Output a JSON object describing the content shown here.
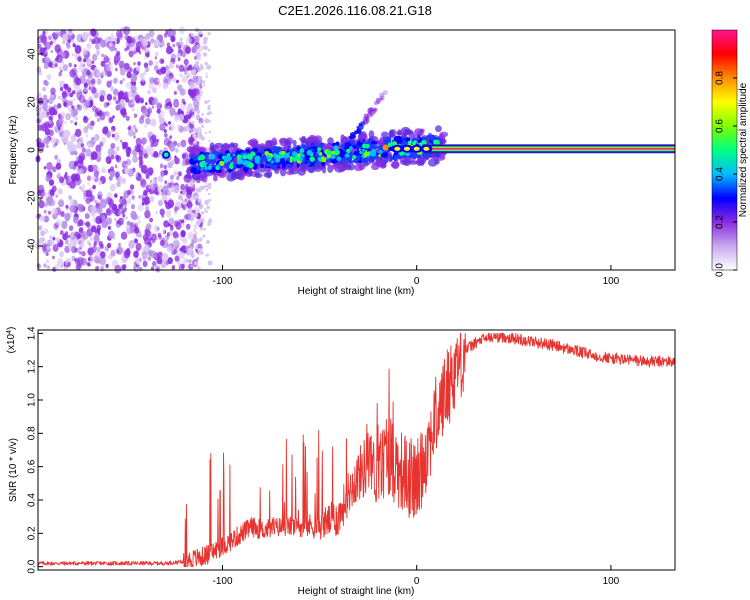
{
  "title": "C2E1.2026.116.08.21.G18",
  "chart_data": [
    {
      "type": "heatmap",
      "name": "spectrogram",
      "xlabel": "Height of straight line (km)",
      "ylabel": "Frequency (Hz)",
      "xlim": [
        -195,
        133
      ],
      "ylim": [
        -50,
        50
      ],
      "xticks": [
        -100,
        0,
        100
      ],
      "xtick_labels": [
        "-100",
        "0",
        "100"
      ],
      "yticks": [
        -40,
        -20,
        0,
        20,
        40
      ],
      "ytick_labels": [
        "-40",
        "-20",
        "0",
        "20",
        "40"
      ],
      "noise_region_km": [
        -195,
        -117
      ],
      "signal_line_start_km": 3,
      "signal_line_freq_hz": 0.5,
      "colorbar": {
        "label": "Normalized spectral amplitude",
        "ticks": [
          0.0,
          0.2,
          0.4,
          0.6,
          0.8
        ],
        "tick_labels": [
          "0.0",
          "0.2",
          "0.4",
          "0.6",
          "0.8"
        ],
        "range": [
          0,
          1
        ],
        "colors": [
          "#ffffff",
          "#c8a8f0",
          "#8a2be2",
          "#0000ff",
          "#00bfff",
          "#00ff7f",
          "#7fff00",
          "#ffff00",
          "#ff8c00",
          "#ff0000",
          "#ff1493"
        ]
      }
    },
    {
      "type": "line",
      "name": "snr",
      "xlabel": "Height of straight line (km)",
      "ylabel": "SNR (10 * v/v)",
      "yscale_label": "(x10",
      "yscale_exp": "4",
      "yscale_suffix": ")",
      "xlim": [
        -195,
        133
      ],
      "ylim": [
        -0.02,
        1.42
      ],
      "xticks": [
        -100,
        0,
        100
      ],
      "xtick_labels": [
        "-100",
        "0",
        "100"
      ],
      "yticks": [
        0.0,
        0.2,
        0.4,
        0.6,
        0.8,
        1.0,
        1.2,
        1.4
      ],
      "ytick_labels": [
        "0.0",
        "0.2",
        "0.4",
        "0.6",
        "0.8",
        "1.0",
        "1.2",
        "1.4"
      ],
      "color": "#e8332f",
      "series": [
        {
          "name": "SNR",
          "x": [
            -195,
            -170,
            -150,
            -130,
            -120,
            -110,
            -100,
            -90,
            -85,
            -80,
            -70,
            -60,
            -50,
            -40,
            -35,
            -30,
            -25,
            -20,
            -15,
            -10,
            -5,
            0,
            5,
            10,
            15,
            20,
            25,
            30,
            35,
            40,
            45,
            50,
            60,
            70,
            80,
            90,
            100,
            110,
            120,
            133
          ],
          "y": [
            0.02,
            0.02,
            0.02,
            0.02,
            0.03,
            0.06,
            0.12,
            0.2,
            0.24,
            0.22,
            0.24,
            0.24,
            0.25,
            0.3,
            0.45,
            0.55,
            0.62,
            0.55,
            0.7,
            0.6,
            0.55,
            0.5,
            0.7,
            0.9,
            1.05,
            1.2,
            1.3,
            1.34,
            1.37,
            1.38,
            1.38,
            1.37,
            1.35,
            1.33,
            1.3,
            1.27,
            1.25,
            1.24,
            1.23,
            1.23
          ]
        }
      ]
    }
  ]
}
